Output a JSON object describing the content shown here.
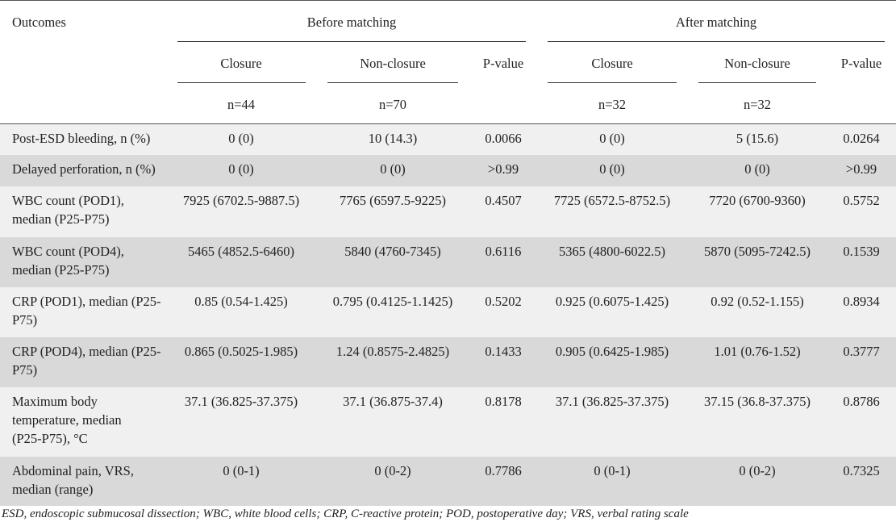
{
  "headers": {
    "outcomes": "Outcomes",
    "before": "Before matching",
    "after": "After matching",
    "closure": "Closure",
    "non_closure": "Non-closure",
    "p_value": "P-value",
    "n_before_closure": "n=44",
    "n_before_non": "n=70",
    "n_after_closure": "n=32",
    "n_after_non": "n=32"
  },
  "rows": [
    {
      "label": "Post-ESD bleeding, n (%)",
      "bc": "0 (0)",
      "bn": "10 (14.3)",
      "bp": "0.0066",
      "ac": "0 (0)",
      "an": "5 (15.6)",
      "ap": "0.0264"
    },
    {
      "label": "Delayed perforation, n (%)",
      "bc": "0 (0)",
      "bn": "0 (0)",
      "bp": ">0.99",
      "ac": "0 (0)",
      "an": "0 (0)",
      "ap": ">0.99"
    },
    {
      "label": "WBC count (POD1), median (P25-P75)",
      "bc": "7925 (6702.5-9887.5)",
      "bn": "7765 (6597.5-9225)",
      "bp": "0.4507",
      "ac": "7725 (6572.5-8752.5)",
      "an": "7720 (6700-9360)",
      "ap": "0.5752"
    },
    {
      "label": "WBC count (POD4), median (P25-P75)",
      "bc": "5465 (4852.5-6460)",
      "bn": "5840 (4760-7345)",
      "bp": "0.6116",
      "ac": "5365 (4800-6022.5)",
      "an": "5870 (5095-7242.5)",
      "ap": "0.1539"
    },
    {
      "label": "CRP (POD1), median (P25-P75)",
      "bc": "0.85 (0.54-1.425)",
      "bn": "0.795 (0.4125-1.1425)",
      "bp": "0.5202",
      "ac": "0.925 (0.6075-1.425)",
      "an": "0.92 (0.52-1.155)",
      "ap": "0.8934"
    },
    {
      "label": "CRP (POD4), median (P25-P75)",
      "bc": "0.865 (0.5025-1.985)",
      "bn": "1.24 (0.8575-2.4825)",
      "bp": "0.1433",
      "ac": "0.905 (0.6425-1.985)",
      "an": "1.01 (0.76-1.52)",
      "ap": "0.3777"
    },
    {
      "label": "Maximum body temperature, median (P25-P75), °C",
      "bc": "37.1 (36.825-37.375)",
      "bn": "37.1 (36.875-37.4)",
      "bp": "0.8178",
      "ac": "37.1 (36.825-37.375)",
      "an": "37.15 (36.8-37.375)",
      "ap": "0.8786"
    },
    {
      "label": "Abdominal pain, VRS, median (range)",
      "bc": "0 (0-1)",
      "bn": "0 (0-2)",
      "bp": "0.7786",
      "ac": "0 (0-1)",
      "an": "0 (0-2)",
      "ap": "0.7325"
    }
  ],
  "footnote": "ESD, endoscopic submucosal dissection; WBC, white blood cells; CRP, C-reactive protein; POD, postoperative day; VRS, verbal rating scale"
}
